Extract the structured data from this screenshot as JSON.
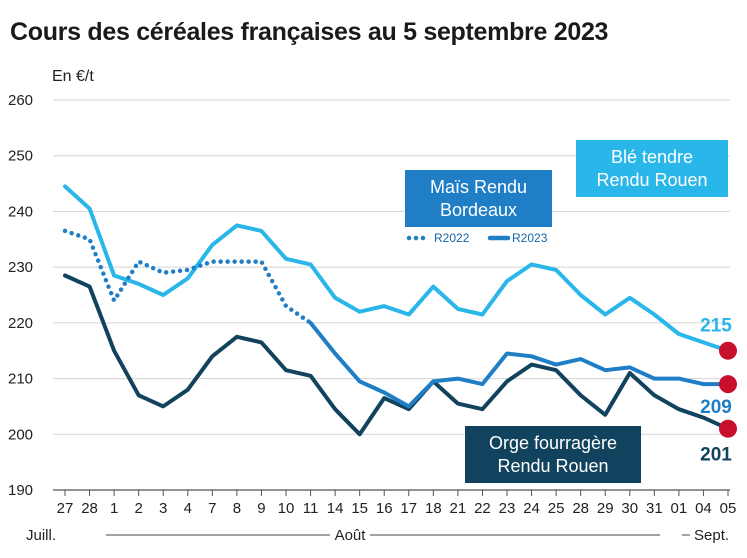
{
  "title": "Cours des céréales françaises au 5 septembre 2023",
  "unit": "En €/t",
  "chart_data": {
    "type": "line",
    "title": "Cours des céréales françaises au 5 septembre 2023",
    "ylabel": "En €/t",
    "ylim": [
      190,
      260
    ],
    "yticks": [
      190,
      200,
      210,
      220,
      230,
      240,
      250,
      260
    ],
    "categories": [
      "27",
      "28",
      "1",
      "2",
      "3",
      "4",
      "7",
      "8",
      "9",
      "10",
      "11",
      "14",
      "15",
      "16",
      "17",
      "18",
      "21",
      "22",
      "23",
      "24",
      "25",
      "28",
      "29",
      "30",
      "31",
      "01",
      "04",
      "05"
    ],
    "periods": [
      "Juill.",
      "Août",
      "Sept."
    ],
    "grid": true,
    "series": [
      {
        "name": "Blé tendre Rendu Rouen",
        "color": "#29b6e8",
        "style": "solid",
        "values": [
          244.5,
          240.5,
          228.5,
          227,
          225,
          228,
          234,
          237.5,
          236.5,
          231.5,
          230.5,
          224.5,
          222,
          223,
          221.5,
          226.5,
          222.5,
          221.5,
          227.5,
          230.5,
          229.5,
          225,
          221.5,
          224.5,
          221.5,
          218,
          216.5,
          215
        ],
        "end_label": "215",
        "label_lines": [
          "Blé tendre",
          "Rendu Rouen"
        ]
      },
      {
        "name": "Maïs Rendu Bordeaux R2022",
        "color": "#1f7ec6",
        "style": "dotted",
        "values": [
          236.5,
          235,
          224,
          231,
          229,
          229.5,
          231,
          231,
          231,
          223,
          220,
          null,
          null,
          null,
          null,
          null,
          null,
          null,
          null,
          null,
          null,
          null,
          null,
          null,
          null,
          null,
          null,
          null
        ]
      },
      {
        "name": "Maïs Rendu Bordeaux R2023",
        "color": "#1f7ec6",
        "style": "solid",
        "values": [
          null,
          null,
          null,
          null,
          null,
          null,
          null,
          null,
          null,
          null,
          220,
          214.5,
          209.5,
          207.5,
          205,
          209.5,
          210,
          209,
          214.5,
          214,
          212.5,
          213.5,
          211.5,
          212,
          210,
          210,
          209,
          209
        ],
        "end_label": "209",
        "label_lines": [
          "Maïs Rendu",
          "Bordeaux"
        ]
      },
      {
        "name": "Orge fourragère Rendu Rouen",
        "color": "#12435e",
        "style": "solid",
        "values": [
          228.5,
          226.5,
          215,
          207,
          205,
          208,
          214,
          217.5,
          216.5,
          211.5,
          210.5,
          204.5,
          200,
          206.5,
          204.5,
          209.5,
          205.5,
          204.5,
          209.5,
          212.5,
          211.5,
          207,
          203.5,
          211,
          207,
          204.5,
          203,
          201
        ],
        "end_label": "201",
        "label_lines": [
          "Orge fourragère",
          "Rendu Rouen"
        ]
      }
    ],
    "legend": {
      "items": [
        "R2022",
        "R2023"
      ],
      "placement": "center-right"
    }
  }
}
